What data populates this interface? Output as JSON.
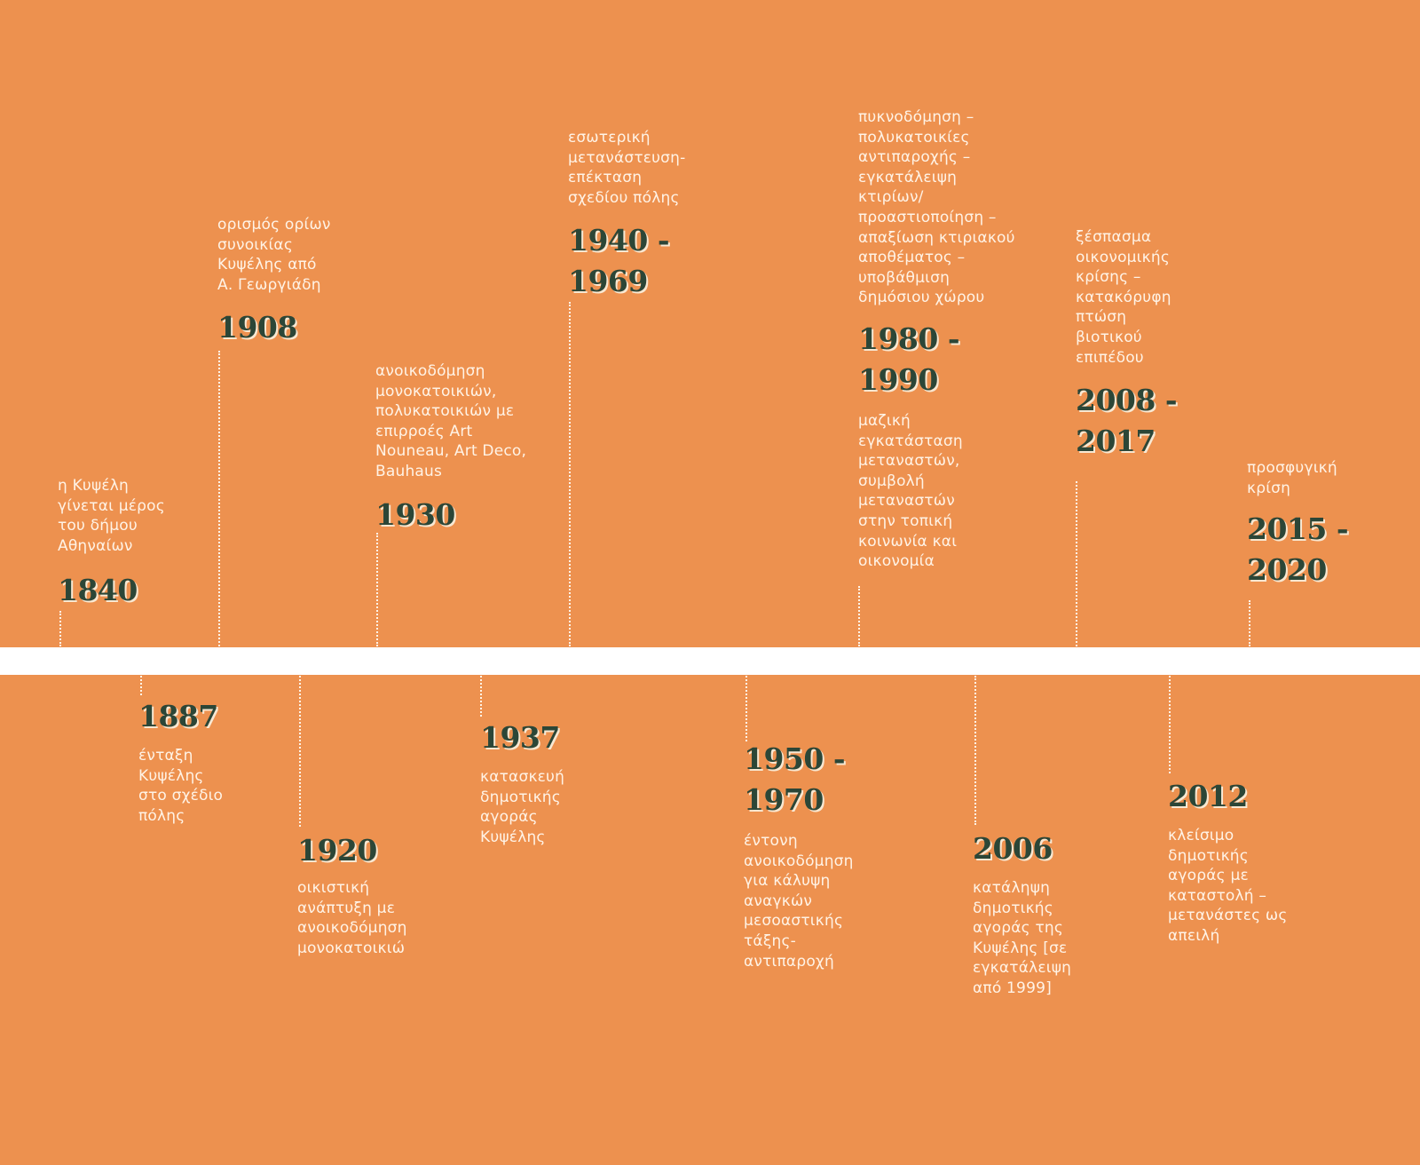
{
  "colors": {
    "background": "#ED914F",
    "band": "#FFFFFF",
    "year_text": "#2C4637",
    "year_shadow": "#F8E8D2",
    "description_text": "#FFF3E6",
    "connector": "#FFF3E6"
  },
  "timeline": {
    "above": [
      {
        "id": "1840",
        "year": "1840",
        "description": "η Κυψέλη\nγίνεται μέρος\nτου δήμου\nΑθηναίων"
      },
      {
        "id": "1908",
        "year": "1908",
        "description": "ορισμός ορίων\nσυνοικίας\nΚυψέλης από\nΑ. Γεωργιάδη"
      },
      {
        "id": "1930",
        "year": "1930",
        "description": "ανοικοδόμηση\nμονοκατοικιών,\nπολυκατοικιών με\nεπιρροές Art\nNouneau, Art Deco,\nBauhaus"
      },
      {
        "id": "1940-1969",
        "year": "1940 -\n1969",
        "description": "εσωτερική\nμετανάστευση-\nεπέκταση\nσχεδίου πόλης"
      },
      {
        "id": "1980-1990",
        "year": "1980 -\n1990",
        "description": "πυκνοδόμηση –\nπολυκατοικίες\nαντιπαροχής –\nεγκατάλειψη\nκτιρίων/\nπροαστιοποίηση –\nαπαξίωση κτιριακού\nαποθέματος –\nυποβάθμιση\nδημόσιου χώρου",
        "description_after": "μαζική\nεγκατάσταση\nμεταναστών,\nσυμβολή\nμεταναστών\nστην τοπική\nκοινωνία και\nοικονομία"
      },
      {
        "id": "2008-2017",
        "year": "2008 -\n2017",
        "description": "ξέσπασμα\nοικονομικής\nκρίσης –\nκατακόρυφη\nπτώση\nβιοτικού\nεπιπέδου"
      },
      {
        "id": "2015-2020",
        "year": "2015 -\n2020",
        "description": "προσφυγική\nκρίση"
      }
    ],
    "below": [
      {
        "id": "1887",
        "year": "1887",
        "description": "ένταξη\nΚυψέλης\nστο σχέδιο\nπόλης"
      },
      {
        "id": "1920",
        "year": "1920",
        "description": "οικιστική\nανάπτυξη με\nανοικοδόμηση\nμονοκατοικιώ"
      },
      {
        "id": "1937",
        "year": "1937",
        "description": "κατασκευή\nδημοτικής\nαγοράς\nΚυψέλης"
      },
      {
        "id": "1950-1970",
        "year": "1950 -\n1970",
        "description": "έντονη\nανοικοδόμηση\nγια κάλυψη\nαναγκών\nμεσοαστικής\nτάξης-\nαντιπαροχή"
      },
      {
        "id": "2006",
        "year": "2006",
        "description": "κατάληψη\nδημοτικής\nαγοράς της\nΚυψέλης [σε\nεγκατάλειψη\nαπό 1999]"
      },
      {
        "id": "2012",
        "year": "2012",
        "description": "κλείσιμο\nδημοτικής\nαγοράς με\nκαταστολή –\nμετανάστες ως\nαπειλή"
      }
    ]
  }
}
